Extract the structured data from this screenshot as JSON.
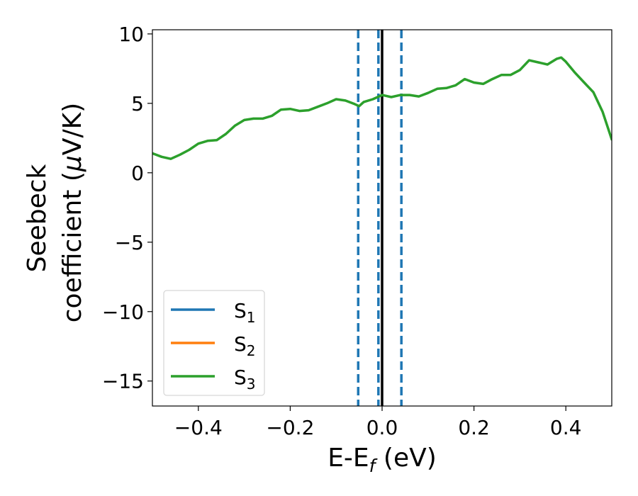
{
  "chart_data": {
    "type": "line",
    "xlabel": {
      "main": "E-E",
      "sub": "f",
      "rest": " (eV)"
    },
    "ylabel": {
      "line1": "Seebeck",
      "line2_prefix": "coefficient  (",
      "line2_mu": "μ",
      "line2_suffix": "V/K)"
    },
    "xlim": [
      -0.5,
      0.5
    ],
    "ylim": [
      -16.8,
      10.3
    ],
    "xticks": [
      -0.4,
      -0.2,
      0.0,
      0.2,
      0.4
    ],
    "xtick_labels": [
      "−0.4",
      "−0.2",
      "0.0",
      "0.2",
      "0.4"
    ],
    "yticks": [
      -15,
      -10,
      -5,
      0,
      5,
      10
    ],
    "ytick_labels": [
      "−15",
      "−10",
      "−5",
      "0",
      "5",
      "10"
    ],
    "grid": false,
    "legend_position": "lower-left",
    "series": [
      {
        "name": "S",
        "sub": "1",
        "color": "#1f77b4",
        "x": [],
        "y": []
      },
      {
        "name": "S",
        "sub": "2",
        "color": "#ff7f0e",
        "x": [],
        "y": []
      },
      {
        "name": "S",
        "sub": "3",
        "color": "#2ca02c",
        "x": [
          -0.5,
          -0.48,
          -0.46,
          -0.44,
          -0.42,
          -0.4,
          -0.38,
          -0.36,
          -0.34,
          -0.32,
          -0.3,
          -0.28,
          -0.26,
          -0.24,
          -0.22,
          -0.2,
          -0.18,
          -0.16,
          -0.14,
          -0.12,
          -0.1,
          -0.08,
          -0.06,
          -0.05,
          -0.04,
          -0.02,
          0.0,
          0.02,
          0.04,
          0.06,
          0.08,
          0.1,
          0.12,
          0.14,
          0.16,
          0.18,
          0.2,
          0.22,
          0.24,
          0.26,
          0.28,
          0.3,
          0.32,
          0.34,
          0.36,
          0.38,
          0.39,
          0.4,
          0.42,
          0.44,
          0.46,
          0.48,
          0.5
        ],
        "y": [
          1.4,
          1.15,
          1.0,
          1.3,
          1.65,
          2.1,
          2.3,
          2.35,
          2.8,
          3.4,
          3.8,
          3.9,
          3.9,
          4.1,
          4.55,
          4.6,
          4.45,
          4.5,
          4.75,
          5.0,
          5.3,
          5.2,
          4.95,
          4.8,
          5.1,
          5.3,
          5.6,
          5.45,
          5.6,
          5.6,
          5.5,
          5.75,
          6.05,
          6.1,
          6.3,
          6.75,
          6.5,
          6.4,
          6.75,
          7.05,
          7.05,
          7.4,
          8.1,
          7.95,
          7.8,
          8.2,
          8.3,
          8.0,
          7.2,
          6.5,
          5.8,
          4.4,
          2.4
        ]
      }
    ],
    "vlines": [
      {
        "x": -0.052,
        "style": "dashed",
        "color": "#1f77b4"
      },
      {
        "x": 0.042,
        "style": "dashed",
        "color": "#1f77b4"
      },
      {
        "x": -0.008,
        "style": "dashed",
        "color": "#1f77b4"
      },
      {
        "x": 0.0,
        "style": "solid",
        "color": "#000000"
      }
    ]
  }
}
